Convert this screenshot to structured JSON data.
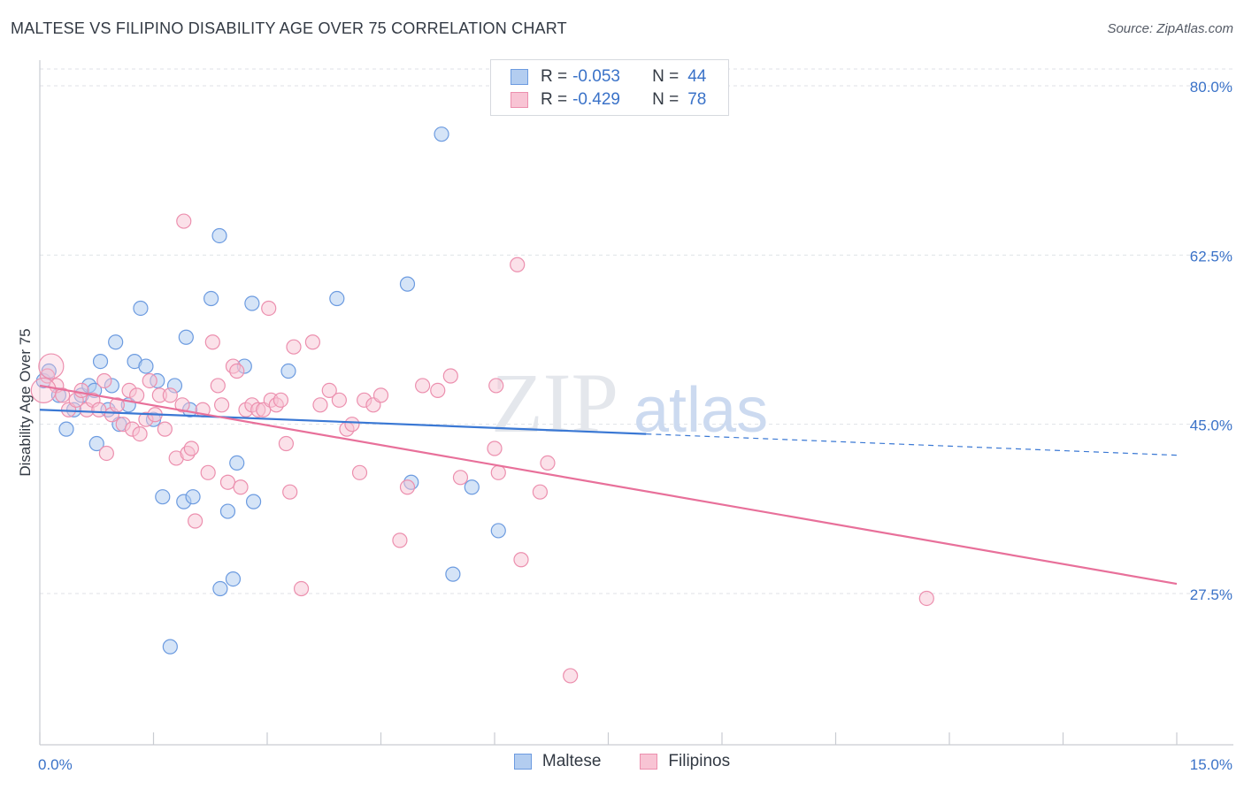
{
  "header": {
    "title": "MALTESE VS FILIPINO DISABILITY AGE OVER 75 CORRELATION CHART",
    "source": "Source: ZipAtlas.com"
  },
  "colors": {
    "maltese_fill": "#b3cdf0",
    "maltese_stroke": "#6c9be0",
    "maltese_line": "#3a78d4",
    "filipino_fill": "#f8c4d4",
    "filipino_stroke": "#ec8fae",
    "filipino_line": "#e8709a",
    "value_blue": "#3a72c8"
  },
  "legend": {
    "maltese": {
      "r_label": "R =",
      "r_value": "-0.053",
      "n_label": "N =",
      "n_value": "44"
    },
    "filipinos": {
      "r_label": "R =",
      "r_value": "-0.429",
      "n_label": "N =",
      "n_value": "78"
    }
  },
  "bottom_legend": {
    "maltese": "Maltese",
    "filipinos": "Filipinos"
  },
  "watermark": {
    "zip": "ZIP",
    "atlas": "atlas"
  },
  "chart_data": {
    "type": "scatter",
    "title": "MALTESE VS FILIPINO DISABILITY AGE OVER 75 CORRELATION CHART",
    "xlabel": "",
    "ylabel": "Disability Age Over 75",
    "xlim": [
      0,
      15
    ],
    "ylim": [
      10,
      85
    ],
    "x_tick_labels": [
      "0.0%",
      "15.0%"
    ],
    "y_ticks": [
      27.5,
      45.0,
      62.5,
      80.0
    ],
    "y_tick_labels": [
      "27.5%",
      "45.0%",
      "62.5%",
      "80.0%"
    ],
    "series": [
      {
        "name": "Maltese",
        "points": [
          [
            0.05,
            49.5
          ],
          [
            0.12,
            50.5
          ],
          [
            0.25,
            48.0
          ],
          [
            0.35,
            44.5
          ],
          [
            0.45,
            46.5
          ],
          [
            0.55,
            48.0
          ],
          [
            0.65,
            49.0
          ],
          [
            0.72,
            48.5
          ],
          [
            0.8,
            51.5
          ],
          [
            0.9,
            46.5
          ],
          [
            0.75,
            43.0
          ],
          [
            0.95,
            49.0
          ],
          [
            1.0,
            53.5
          ],
          [
            1.05,
            45.0
          ],
          [
            1.17,
            47.0
          ],
          [
            1.25,
            51.5
          ],
          [
            1.33,
            57.0
          ],
          [
            1.4,
            51.0
          ],
          [
            1.5,
            45.5
          ],
          [
            1.55,
            49.5
          ],
          [
            1.62,
            37.5
          ],
          [
            1.72,
            22.0
          ],
          [
            1.78,
            49.0
          ],
          [
            1.9,
            37.0
          ],
          [
            1.93,
            54.0
          ],
          [
            1.98,
            46.5
          ],
          [
            2.02,
            37.5
          ],
          [
            2.26,
            58.0
          ],
          [
            2.37,
            64.5
          ],
          [
            2.48,
            36.0
          ],
          [
            2.55,
            29.0
          ],
          [
            2.6,
            41.0
          ],
          [
            2.7,
            51.0
          ],
          [
            2.8,
            57.5
          ],
          [
            2.82,
            37.0
          ],
          [
            3.28,
            50.5
          ],
          [
            3.92,
            58.0
          ],
          [
            4.85,
            59.5
          ],
          [
            4.9,
            39.0
          ],
          [
            5.3,
            75.0
          ],
          [
            5.45,
            29.5
          ],
          [
            5.7,
            38.5
          ],
          [
            6.05,
            34.0
          ],
          [
            2.38,
            28.0
          ]
        ]
      },
      {
        "name": "Filipinos",
        "points": [
          [
            0.1,
            50.0
          ],
          [
            0.22,
            49.0
          ],
          [
            0.3,
            48.0
          ],
          [
            0.38,
            46.5
          ],
          [
            0.48,
            47.5
          ],
          [
            0.55,
            48.5
          ],
          [
            0.62,
            46.5
          ],
          [
            0.7,
            47.5
          ],
          [
            0.78,
            46.5
          ],
          [
            0.85,
            49.5
          ],
          [
            0.88,
            42.0
          ],
          [
            0.95,
            46.0
          ],
          [
            1.02,
            47.0
          ],
          [
            1.1,
            45.0
          ],
          [
            1.18,
            48.5
          ],
          [
            1.22,
            44.5
          ],
          [
            1.28,
            48.0
          ],
          [
            1.32,
            44.0
          ],
          [
            1.4,
            45.5
          ],
          [
            1.45,
            49.5
          ],
          [
            1.52,
            46.0
          ],
          [
            1.58,
            48.0
          ],
          [
            1.65,
            44.5
          ],
          [
            1.72,
            48.0
          ],
          [
            1.8,
            41.5
          ],
          [
            1.88,
            47.0
          ],
          [
            1.9,
            66.0
          ],
          [
            1.95,
            42.0
          ],
          [
            2.0,
            42.5
          ],
          [
            2.05,
            35.0
          ],
          [
            2.15,
            46.5
          ],
          [
            2.22,
            40.0
          ],
          [
            2.28,
            53.5
          ],
          [
            2.35,
            49.0
          ],
          [
            2.4,
            47.0
          ],
          [
            2.48,
            39.0
          ],
          [
            2.55,
            51.0
          ],
          [
            2.6,
            50.5
          ],
          [
            2.65,
            38.5
          ],
          [
            2.72,
            46.5
          ],
          [
            2.8,
            47.0
          ],
          [
            2.88,
            46.5
          ],
          [
            2.95,
            46.5
          ],
          [
            3.02,
            57.0
          ],
          [
            3.05,
            47.5
          ],
          [
            3.12,
            47.0
          ],
          [
            3.18,
            47.5
          ],
          [
            3.25,
            43.0
          ],
          [
            3.3,
            38.0
          ],
          [
            3.35,
            53.0
          ],
          [
            3.45,
            28.0
          ],
          [
            3.6,
            53.5
          ],
          [
            3.7,
            47.0
          ],
          [
            3.82,
            48.5
          ],
          [
            3.95,
            47.5
          ],
          [
            4.05,
            44.5
          ],
          [
            4.12,
            45.0
          ],
          [
            4.22,
            40.0
          ],
          [
            4.28,
            47.5
          ],
          [
            4.4,
            47.0
          ],
          [
            4.5,
            48.0
          ],
          [
            4.75,
            33.0
          ],
          [
            4.85,
            38.5
          ],
          [
            5.05,
            49.0
          ],
          [
            5.25,
            48.5
          ],
          [
            5.42,
            50.0
          ],
          [
            5.55,
            39.5
          ],
          [
            6.0,
            42.5
          ],
          [
            6.02,
            49.0
          ],
          [
            6.05,
            40.0
          ],
          [
            6.3,
            61.5
          ],
          [
            6.35,
            31.0
          ],
          [
            6.6,
            38.0
          ],
          [
            6.7,
            41.0
          ],
          [
            7.0,
            19.0
          ],
          [
            11.7,
            27.0
          ],
          [
            0.05,
            48.5
          ],
          [
            0.15,
            51.0
          ]
        ]
      }
    ],
    "trend_lines": [
      {
        "name": "Maltese",
        "from": [
          0.0,
          46.5
        ],
        "to": [
          8.0,
          44.0
        ],
        "dashed_to": [
          15.0,
          41.8
        ]
      },
      {
        "name": "Filipinos",
        "from": [
          0.0,
          49.0
        ],
        "to": [
          15.0,
          28.5
        ]
      }
    ]
  }
}
